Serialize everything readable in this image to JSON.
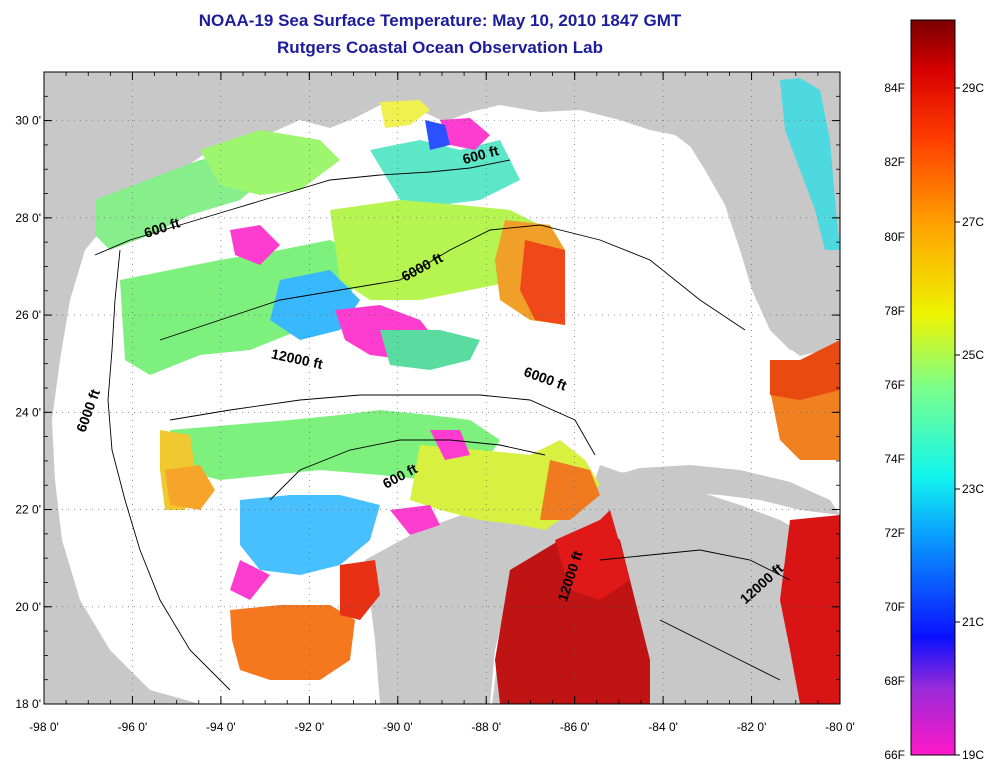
{
  "title": "NOAA-19 Sea Surface Temperature:  May 10, 2010 1847 GMT",
  "subtitle": "Rutgers Coastal Ocean Observation Lab",
  "axes": {
    "lon_ticks": [
      "-98 0'",
      "-96 0'",
      "-94 0'",
      "-92 0'",
      "-90 0'",
      "-88 0'",
      "-86 0'",
      "-84 0'",
      "-82 0'",
      "-80 0'"
    ],
    "lat_ticks": [
      "30 0'",
      "28 0'",
      "26 0'",
      "24 0'",
      "22 0'",
      "20 0'",
      "18 0'"
    ],
    "lon_range": [
      -98,
      -80
    ],
    "lat_range": [
      18,
      31
    ]
  },
  "contour_labels": [
    {
      "text": "600 ft",
      "lon": -95.3,
      "lat": 27.7,
      "rot": -18
    },
    {
      "text": "600 ft",
      "lon": -88.1,
      "lat": 29.2,
      "rot": -15
    },
    {
      "text": "6000 ft",
      "lon": -89.4,
      "lat": 26.9,
      "rot": -28
    },
    {
      "text": "12000 ft",
      "lon": -92.3,
      "lat": 25.0,
      "rot": 12
    },
    {
      "text": "6000 ft",
      "lon": -96.9,
      "lat": 24.0,
      "rot": -70
    },
    {
      "text": "6000 ft",
      "lon": -86.7,
      "lat": 24.6,
      "rot": 20
    },
    {
      "text": "600 ft",
      "lon": -89.9,
      "lat": 22.6,
      "rot": -28
    },
    {
      "text": "12000 ft",
      "lon": -86.0,
      "lat": 20.6,
      "rot": -72
    },
    {
      "text": "12000 ft",
      "lon": -81.7,
      "lat": 20.4,
      "rot": -42
    }
  ],
  "colorbar": {
    "fahrenheit": [
      "84F",
      "82F",
      "80F",
      "78F",
      "76F",
      "74F",
      "72F",
      "70F",
      "68F",
      "66F"
    ],
    "celsius": [
      "29C",
      "27C",
      "25C",
      "23C",
      "21C",
      "19C"
    ],
    "colors": [
      "#ff18c8",
      "#9a2ad8",
      "#0a10ff",
      "#0aa0ff",
      "#12f6ee",
      "#7cff8a",
      "#eef400",
      "#ffa300",
      "#ff3c00",
      "#d80000",
      "#7a0000"
    ]
  },
  "palette": {
    "land": "#c8c8c8",
    "ocean": "#ffffff",
    "contour": "#000000",
    "title": "#1c1c9c"
  }
}
